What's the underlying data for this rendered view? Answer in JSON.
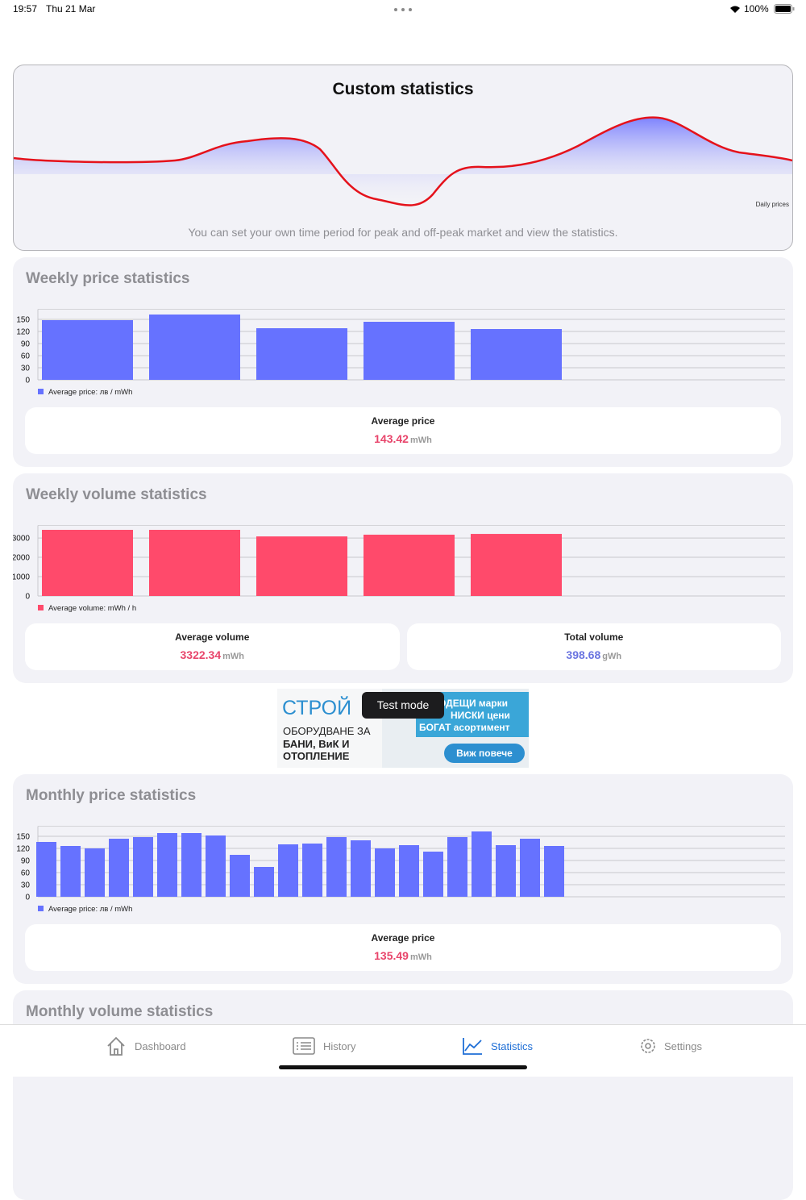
{
  "status_bar": {
    "time": "19:57",
    "date": "Thu 21 Mar",
    "battery": "100%"
  },
  "custom_card": {
    "title": "Custom statistics",
    "chart_label": "Daily prices",
    "description": "You can set your own time period for peak and off-peak market and view the statistics."
  },
  "cards": [
    {
      "title": "Weekly price statistics",
      "chart": {
        "type": "bar",
        "color": "#6672ff",
        "ylim": [
          0,
          175
        ],
        "yticks": [
          0,
          30,
          60,
          90,
          120,
          150
        ],
        "grid": true,
        "legend": "Average price: лв / mWh",
        "values": [
          148,
          162,
          128,
          144,
          126
        ]
      },
      "stats": [
        {
          "label": "Average price",
          "value": 143.42,
          "unit": "mWh",
          "color": "#e8456b"
        }
      ]
    },
    {
      "title": "Weekly volume statistics",
      "chart": {
        "type": "bar",
        "color": "#ff4a6b",
        "ylim": [
          0,
          3650
        ],
        "yticks": [
          0,
          1000,
          2000,
          3000
        ],
        "grid": true,
        "legend": "Average volume: mWh / h",
        "values": [
          3420,
          3420,
          3080,
          3170,
          3210
        ]
      },
      "stats": [
        {
          "label": "Average volume",
          "value": 3322.34,
          "unit": "mWh",
          "color": "#e8456b"
        },
        {
          "label": "Total volume",
          "value": 398.68,
          "unit": "gWh",
          "color": "#6a74e0"
        }
      ]
    },
    {
      "title": "Monthly price statistics",
      "chart": {
        "type": "bar",
        "color": "#6672ff",
        "ylim": [
          0,
          175
        ],
        "yticks": [
          0,
          30,
          60,
          90,
          120,
          150
        ],
        "grid": true,
        "legend": "Average price: лв / mWh",
        "values": [
          136,
          126,
          120,
          144,
          148,
          158,
          158,
          152,
          104,
          74,
          130,
          132,
          148,
          140,
          120,
          128,
          112,
          148,
          162,
          128,
          144,
          126
        ]
      },
      "stats": [
        {
          "label": "Average price",
          "value": 135.49,
          "unit": "mWh",
          "color": "#e8456b"
        }
      ]
    },
    {
      "title": "Monthly volume statistics"
    }
  ],
  "ad": {
    "brand": "СТРОЙ",
    "line1": "ОБОРУДВАНЕ ЗА",
    "line2": "БАНИ, ВиК И",
    "line3": "ОТОПЛЕНИЕ",
    "offer1": "ОДЕЩИ марки",
    "offer2": "НИСКИ цени",
    "offer3": "БОГАТ асортимент",
    "button": "Виж повече",
    "badge": "Test mode"
  },
  "tab_bar": {
    "items": [
      "Dashboard",
      "History",
      "Statistics",
      "Settings"
    ],
    "active": 2
  }
}
